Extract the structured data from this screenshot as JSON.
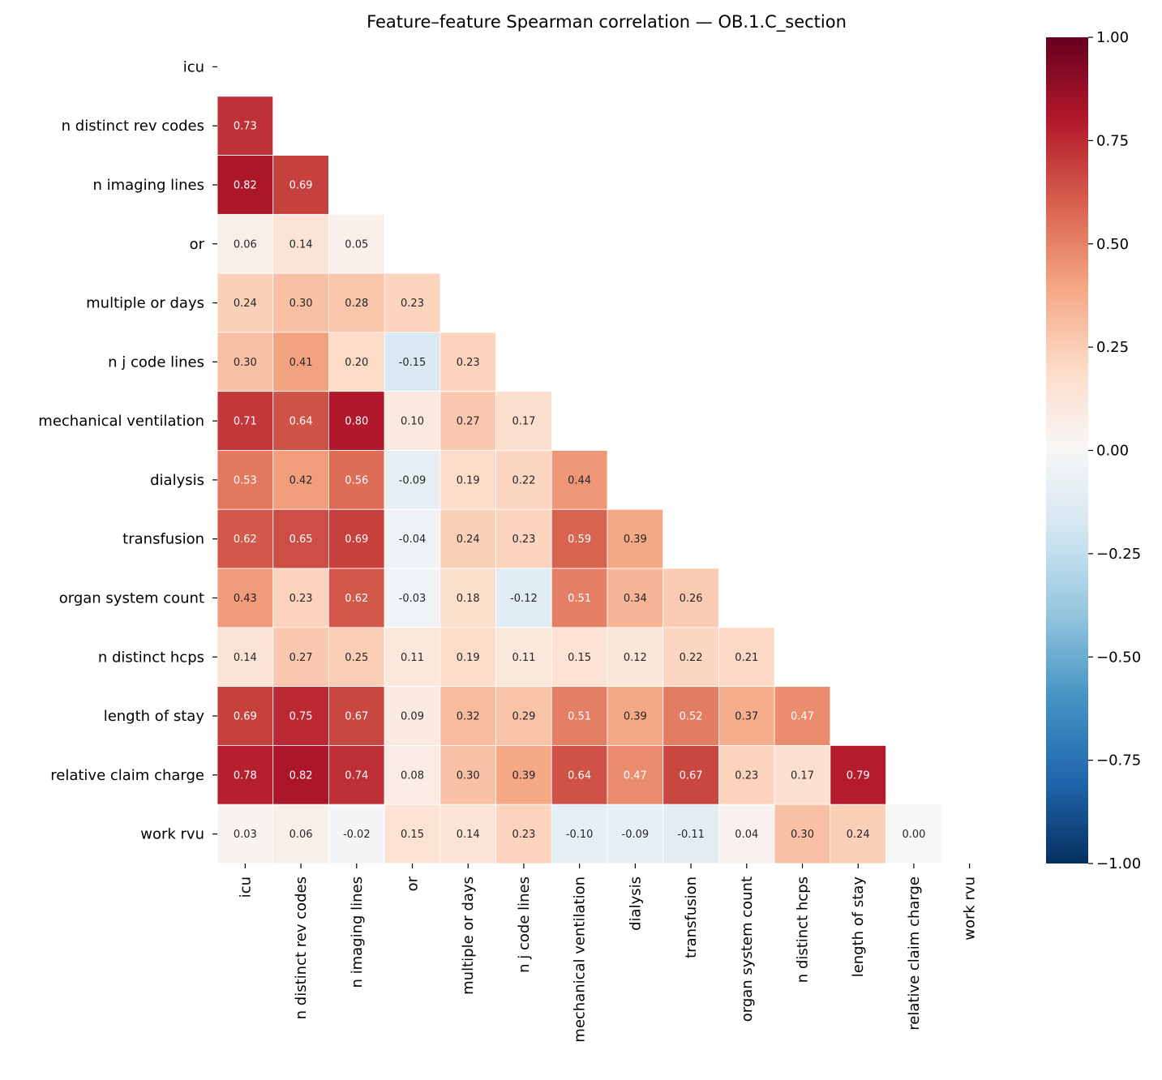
{
  "chart_data": {
    "type": "heatmap",
    "title": "Feature–feature Spearman correlation — OB.1.C_section",
    "labels": [
      "icu",
      "n distinct rev codes",
      "n imaging lines",
      "or",
      "multiple or days",
      "n j code lines",
      "mechanical ventilation",
      "dialysis",
      "transfusion",
      "organ system count",
      "n distinct hcps",
      "length of stay",
      "relative claim charge",
      "work rvu"
    ],
    "lower_triangle_values": [
      [],
      [
        0.73
      ],
      [
        0.82,
        0.69
      ],
      [
        0.06,
        0.14,
        0.05
      ],
      [
        0.24,
        0.3,
        0.28,
        0.23
      ],
      [
        0.3,
        0.41,
        0.2,
        -0.15,
        0.23
      ],
      [
        0.71,
        0.64,
        0.8,
        0.1,
        0.27,
        0.17
      ],
      [
        0.53,
        0.42,
        0.56,
        -0.09,
        0.19,
        0.22,
        0.44
      ],
      [
        0.62,
        0.65,
        0.69,
        -0.04,
        0.24,
        0.23,
        0.59,
        0.39
      ],
      [
        0.43,
        0.23,
        0.62,
        -0.03,
        0.18,
        -0.12,
        0.51,
        0.34,
        0.26
      ],
      [
        0.14,
        0.27,
        0.25,
        0.11,
        0.19,
        0.11,
        0.15,
        0.12,
        0.22,
        0.21
      ],
      [
        0.69,
        0.75,
        0.67,
        0.09,
        0.32,
        0.29,
        0.51,
        0.39,
        0.52,
        0.37,
        0.47
      ],
      [
        0.78,
        0.82,
        0.74,
        0.08,
        0.3,
        0.39,
        0.64,
        0.47,
        0.67,
        0.23,
        0.17,
        0.79
      ],
      [
        0.03,
        0.06,
        -0.02,
        0.15,
        0.14,
        0.23,
        -0.1,
        -0.09,
        -0.11,
        0.04,
        0.3,
        0.24,
        -0.0
      ]
    ],
    "colormap": "RdBu_r",
    "vmin": -1,
    "vmax": 1,
    "colorbar_ticks": [
      "−1.00",
      "−0.75",
      "−0.50",
      "−0.25",
      "0.00",
      "0.25",
      "0.50",
      "0.75",
      "1.00"
    ],
    "colorbar_tick_values": [
      -1,
      -0.75,
      -0.5,
      -0.25,
      0,
      0.25,
      0.5,
      0.75,
      1
    ],
    "mask": "upper triangle including diagonal"
  }
}
